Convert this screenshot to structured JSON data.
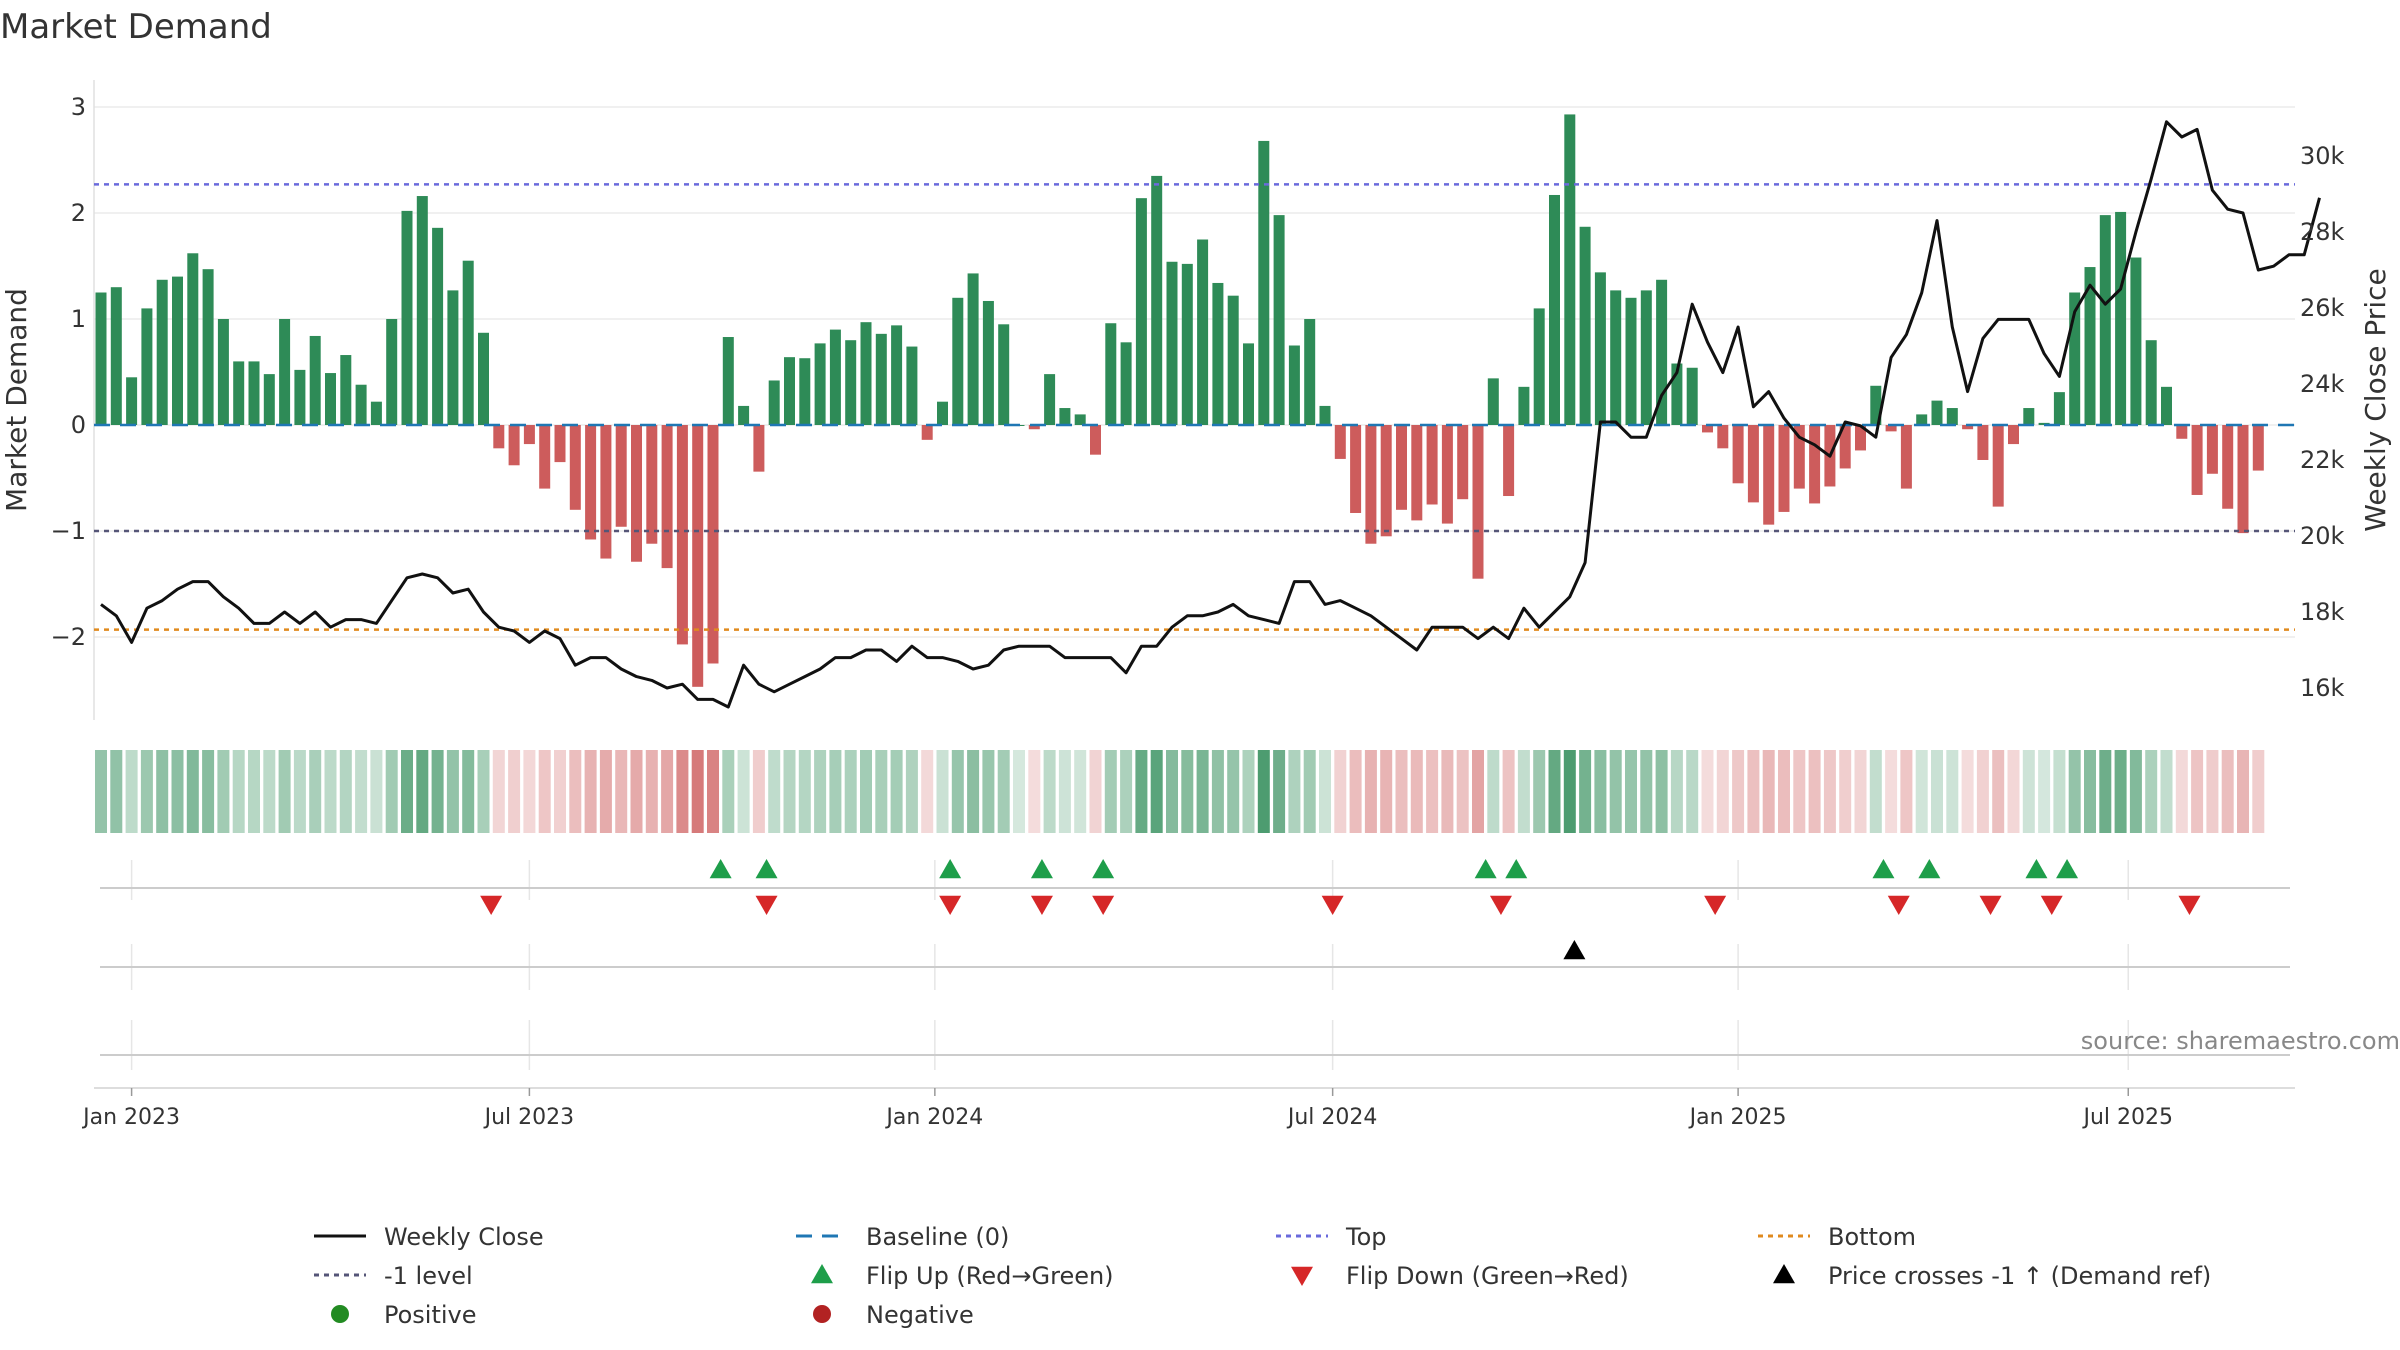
{
  "chart_data": {
    "type": "bar",
    "title": "Market Demand",
    "ylabel_left": "Market Demand",
    "ylabel_right": "Weekly Close Price",
    "ylim": [
      -2.8,
      3.15
    ],
    "y2lim": [
      14500,
      32000
    ],
    "yticks_left": [
      {
        "value": 3,
        "label": "3"
      },
      {
        "value": 2,
        "label": "2"
      },
      {
        "value": 1,
        "label": "1"
      },
      {
        "value": 0,
        "label": "0"
      },
      {
        "value": -1,
        "label": "−1"
      },
      {
        "value": -2,
        "label": "−2"
      }
    ],
    "yticks_right": [
      {
        "value": 16000,
        "label": "16k"
      },
      {
        "value": 18000,
        "label": "18k"
      },
      {
        "value": 20000,
        "label": "20k"
      },
      {
        "value": 22000,
        "label": "22k"
      },
      {
        "value": 24000,
        "label": "24k"
      },
      {
        "value": 26000,
        "label": "26k"
      },
      {
        "value": 28000,
        "label": "28k"
      },
      {
        "value": 30000,
        "label": "30k"
      }
    ],
    "xticks": [
      {
        "week": 2,
        "label": "Jan 2023"
      },
      {
        "week": 28,
        "label": "Jul 2023"
      },
      {
        "week": 54.5,
        "label": "Jan 2024"
      },
      {
        "week": 80.5,
        "label": "Jul 2024"
      },
      {
        "week": 107,
        "label": "Jan 2025"
      },
      {
        "week": 132.5,
        "label": "Jul 2025"
      }
    ],
    "reference_lines": {
      "top": 2.27,
      "minus_one": -1.0,
      "bottom": -1.93,
      "baseline": 0
    },
    "series": [
      {
        "name": "Market Demand",
        "start_week": 0,
        "values": [
          1.25,
          1.3,
          0.45,
          1.1,
          1.37,
          1.4,
          1.62,
          1.47,
          1.0,
          0.6,
          0.6,
          0.48,
          1.0,
          0.52,
          0.84,
          0.49,
          0.66,
          0.38,
          0.22,
          1.0,
          2.02,
          2.16,
          1.86,
          1.27,
          1.55,
          0.87,
          -0.22,
          -0.38,
          -0.18,
          -0.6,
          -0.35,
          -0.8,
          -1.08,
          -1.26,
          -0.96,
          -1.29,
          -1.12,
          -1.35,
          -2.07,
          -2.47,
          -2.25,
          0.83,
          0.18,
          -0.44,
          0.42,
          0.64,
          0.63,
          0.77,
          0.9,
          0.8,
          0.97,
          0.86,
          0.94,
          0.74,
          -0.14,
          0.22,
          1.2,
          1.43,
          1.17,
          0.95,
          0.0,
          -0.04,
          0.48,
          0.16,
          0.1,
          -0.28,
          0.96,
          0.78,
          2.14,
          2.35,
          1.54,
          1.52,
          1.75,
          1.34,
          1.22,
          0.77,
          2.68,
          1.98,
          0.75,
          1.0,
          0.18,
          -0.32,
          -0.83,
          -1.12,
          -1.05,
          -0.8,
          -0.9,
          -0.75,
          -0.93,
          -0.7,
          -1.45,
          0.44,
          -0.67,
          0.36,
          1.1,
          2.17,
          2.93,
          1.87,
          1.44,
          1.27,
          1.2,
          1.27,
          1.37,
          0.58,
          0.54,
          -0.07,
          -0.22,
          -0.55,
          -0.73,
          -0.94,
          -0.82,
          -0.6,
          -0.74,
          -0.58,
          -0.41,
          -0.24,
          0.37,
          -0.06,
          -0.6,
          0.1,
          0.23,
          0.16,
          -0.04,
          -0.33,
          -0.77,
          -0.18,
          0.16,
          0.02,
          0.31,
          1.25,
          1.49,
          1.98,
          2.01,
          1.58,
          0.8,
          0.36,
          -0.13,
          -0.66,
          -0.46,
          -0.79,
          -1.02,
          -0.43
        ]
      },
      {
        "name": "Weekly Close",
        "start_week": 0,
        "values": [
          18200,
          17900,
          17200,
          18100,
          18300,
          18600,
          18800,
          18800,
          18400,
          18100,
          17700,
          17700,
          18000,
          17700,
          18000,
          17600,
          17800,
          17800,
          17700,
          18300,
          18900,
          19000,
          18900,
          18500,
          18600,
          18000,
          17600,
          17500,
          17200,
          17500,
          17300,
          16600,
          16800,
          16800,
          16500,
          16300,
          16200,
          16000,
          16100,
          15700,
          15700,
          15500,
          16600,
          16100,
          15900,
          16100,
          16300,
          16500,
          16800,
          16800,
          17000,
          17000,
          16700,
          17100,
          16800,
          16800,
          16700,
          16500,
          16600,
          17000,
          17100,
          17100,
          17100,
          16800,
          16800,
          16800,
          16800,
          16400,
          17100,
          17100,
          17600,
          17900,
          17900,
          18000,
          18200,
          17900,
          17800,
          17700,
          18800,
          18800,
          18200,
          18300,
          18100,
          17900,
          17600,
          17300,
          17000,
          17600,
          17600,
          17600,
          17300,
          17600,
          17300,
          18100,
          17600,
          18000,
          18400,
          19300,
          23000,
          23000,
          22600,
          22600,
          23700,
          24300,
          26100,
          25100,
          24300,
          25500,
          23400,
          23800,
          23100,
          22600,
          22400,
          22100,
          23000,
          22900,
          22600,
          24700,
          25300,
          26400,
          28300,
          25500,
          23800,
          25200,
          25700,
          25700,
          25700,
          24800,
          24200,
          25900,
          26600,
          26100,
          26500,
          28000,
          29400,
          30900,
          30500,
          30700,
          29100,
          28600,
          28500,
          27000,
          27100,
          27400,
          27400,
          28900
        ]
      }
    ],
    "flip_up_weeks": [
      40.5,
      43.5,
      55.5,
      61.5,
      65.5,
      90.5,
      92.5,
      116.5,
      119.5,
      126.5,
      128.5
    ],
    "flip_down_weeks": [
      25.5,
      43.5,
      55.5,
      61.5,
      65.5,
      80.5,
      91.5,
      105.5,
      117.5,
      123.5,
      127.5,
      136.5
    ],
    "price_cross_weeks": [
      96.3
    ],
    "legend": [
      {
        "key": "weekly_close",
        "label": "Weekly Close"
      },
      {
        "key": "baseline",
        "label": "Baseline (0)"
      },
      {
        "key": "top",
        "label": "Top"
      },
      {
        "key": "bottom",
        "label": "Bottom"
      },
      {
        "key": "minus_one",
        "label": "-1 level"
      },
      {
        "key": "flip_up",
        "label": "Flip Up (Red→Green)"
      },
      {
        "key": "flip_down",
        "label": "Flip Down (Green→Red)"
      },
      {
        "key": "price_cross",
        "label": "Price crosses -1 ↑ (Demand ref)"
      },
      {
        "key": "positive",
        "label": "Positive"
      },
      {
        "key": "negative",
        "label": "Negative"
      }
    ],
    "source": "source: sharemaestro.com",
    "colors": {
      "positive": "#2e8b57",
      "negative": "#cd5c5c",
      "close": "#111111",
      "baseline": "#1f77b4",
      "top": "#6a6adc",
      "minus_one": "#555577",
      "bottom": "#e08a1e",
      "flip_up": "#1e9e4a",
      "flip_down": "#d62728",
      "price_cross": "#000000",
      "dot_positive": "#228b22",
      "dot_negative": "#b22222"
    }
  }
}
